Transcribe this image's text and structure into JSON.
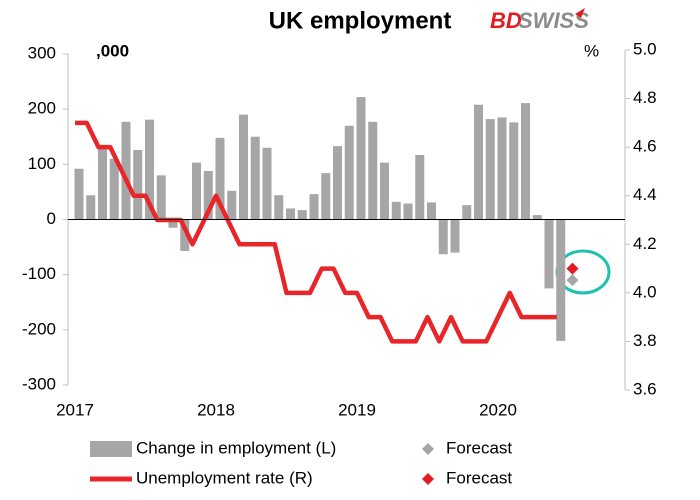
{
  "chart_data": {
    "type": "bar-line",
    "title": "UK employment",
    "logo": [
      "BD",
      "SWISS"
    ],
    "annotations": [
      ",000",
      "%"
    ],
    "categories": [
      "2017",
      null,
      null,
      null,
      null,
      null,
      null,
      null,
      null,
      null,
      null,
      null,
      "2018",
      null,
      null,
      null,
      null,
      null,
      null,
      null,
      null,
      null,
      null,
      null,
      "2019",
      null,
      null,
      null,
      null,
      null,
      null,
      null,
      null,
      null,
      null,
      null,
      "2020",
      null,
      null,
      null,
      null,
      null,
      null
    ],
    "series": [
      {
        "name": "Change in employment (L)",
        "color": "#a6a6a6",
        "kind": "bar",
        "values": [
          92,
          44,
          133,
          110,
          177,
          126,
          181,
          80,
          -15,
          -57,
          103,
          88,
          148,
          52,
          190,
          150,
          130,
          44,
          20,
          17,
          46,
          84,
          133,
          170,
          222,
          177,
          103,
          32,
          29,
          117,
          31,
          -63,
          -60,
          26,
          208,
          182,
          185,
          176,
          211,
          8,
          -125,
          -220,
          null
        ]
      },
      {
        "name": "Forecast",
        "color": "#a6a6a6",
        "kind": "diamond",
        "values": [
          null,
          null,
          null,
          null,
          null,
          null,
          null,
          null,
          null,
          null,
          null,
          null,
          null,
          null,
          null,
          null,
          null,
          null,
          null,
          null,
          null,
          null,
          null,
          null,
          null,
          null,
          null,
          null,
          null,
          null,
          null,
          null,
          null,
          null,
          null,
          null,
          null,
          null,
          null,
          null,
          null,
          null,
          -110
        ]
      },
      {
        "name": "Unemployment rate (R)",
        "color": "#e8262a",
        "kind": "line",
        "axis": "y2",
        "values": [
          4.7,
          4.7,
          4.6,
          4.6,
          4.5,
          4.4,
          4.4,
          4.3,
          4.3,
          4.3,
          4.2,
          4.3,
          4.4,
          4.3,
          4.2,
          4.2,
          4.2,
          4.2,
          4.0,
          4.0,
          4.0,
          4.1,
          4.1,
          4.0,
          4.0,
          3.9,
          3.9,
          3.8,
          3.8,
          3.8,
          3.9,
          3.8,
          3.9,
          3.8,
          3.8,
          3.8,
          3.9,
          4.0,
          3.9,
          3.9,
          3.9,
          3.9,
          null
        ]
      },
      {
        "name": "Forecast",
        "color": "#e31b23",
        "kind": "diamond",
        "axis": "y2",
        "values": [
          null,
          null,
          null,
          null,
          null,
          null,
          null,
          null,
          null,
          null,
          null,
          null,
          null,
          null,
          null,
          null,
          null,
          null,
          null,
          null,
          null,
          null,
          null,
          null,
          null,
          null,
          null,
          null,
          null,
          null,
          null,
          null,
          null,
          null,
          null,
          null,
          null,
          null,
          null,
          null,
          null,
          null,
          4.1
        ]
      }
    ],
    "ylim": [
      -300,
      300
    ],
    "yticks": [
      -300,
      -200,
      -100,
      0,
      100,
      200,
      300
    ],
    "y2lim": [
      3.6,
      5.0
    ],
    "y2ticks": [
      3.6,
      3.8,
      {
        "value": 4,
        "label": "4.0"
      },
      4.2,
      4.4,
      4.6,
      4.8,
      {
        "value": 5,
        "label": "5.0"
      }
    ]
  }
}
